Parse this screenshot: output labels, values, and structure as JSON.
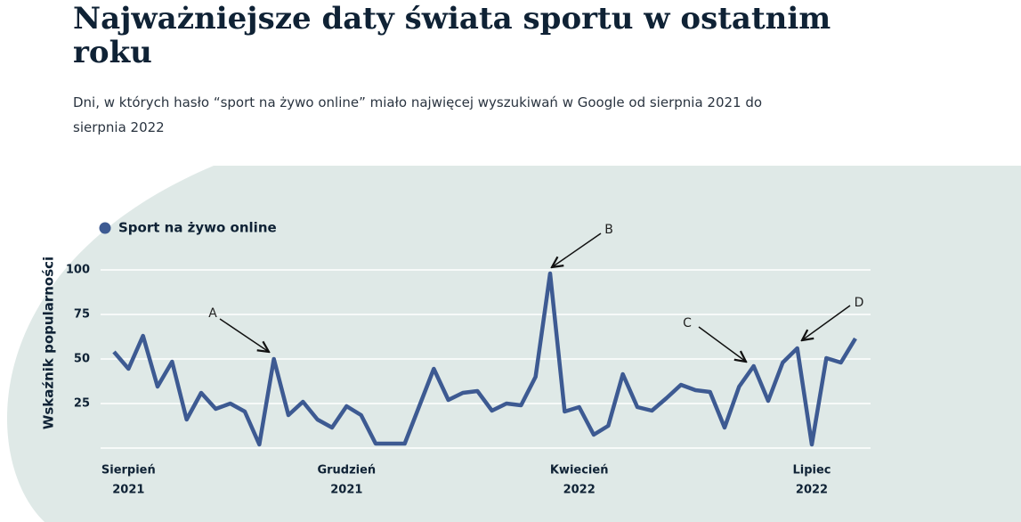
{
  "chart_data": {
    "type": "line",
    "title": "Najważniejsze daty świata sportu w ostatnim roku",
    "subtitle": "Dni, w których hasło “sport na żywo online” miało najwięcej wyszukiwań w Google od sierpnia 2021 do sierpnia 2022",
    "y_label": "Wskaźnik popularności",
    "categories": [
      null,
      [
        "Sierpień",
        "2021"
      ],
      null,
      null,
      null,
      null,
      null,
      null,
      null,
      null,
      null,
      null,
      null,
      null,
      null,
      null,
      [
        "Grudzień",
        "2021"
      ],
      null,
      null,
      null,
      null,
      null,
      null,
      null,
      null,
      null,
      null,
      null,
      null,
      null,
      null,
      null,
      [
        "Kwiecień",
        "2022"
      ],
      null,
      null,
      null,
      null,
      null,
      null,
      null,
      null,
      null,
      null,
      null,
      null,
      null,
      null,
      null,
      [
        "Lipiec",
        "2022"
      ],
      null,
      null,
      null
    ],
    "series": [
      {
        "name": "Sport na żywo online",
        "color": "#3d5a92",
        "values": [
          54,
          44.5,
          63,
          34.5,
          48.5,
          16,
          31,
          22,
          25,
          20.5,
          2,
          50,
          18.5,
          26,
          16,
          11.5,
          23.5,
          18.5,
          2.5,
          2.5,
          2.5,
          23.5,
          44.5,
          27,
          31,
          32,
          21,
          25,
          24,
          40,
          98,
          20.5,
          23,
          7.5,
          12.5,
          41.5,
          23,
          21,
          28,
          35.5,
          32.5,
          31.5,
          11.5,
          34.5,
          46,
          26.5,
          48,
          56,
          2,
          50.5,
          48,
          61.5
        ]
      }
    ],
    "annotations": [
      "A",
      "B",
      "C",
      "D"
    ],
    "ylim": [
      0,
      100
    ],
    "yticks": [
      25,
      50,
      75,
      100
    ],
    "grid": true,
    "legend": "top-left"
  }
}
